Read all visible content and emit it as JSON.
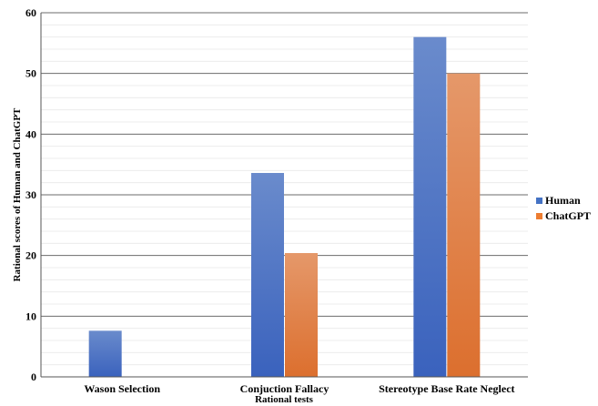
{
  "chart_data": {
    "type": "bar",
    "categories": [
      "Wason Selection",
      "Conjuction Fallacy",
      "Stereotype Base Rate Neglect"
    ],
    "series": [
      {
        "name": "Human",
        "values": [
          7.6,
          33.6,
          56
        ]
      },
      {
        "name": "ChatGPT",
        "values": [
          0,
          20.4,
          50
        ]
      }
    ],
    "xlabel": "Rational tests",
    "ylabel": "Rational scores of  Human and ChatGPT",
    "ylim": [
      0,
      60
    ],
    "yticks": [
      0,
      10,
      20,
      30,
      40,
      50,
      60
    ],
    "grid": "major and minor horizontal",
    "legend_position": "right",
    "colors": {
      "Human": "#4472c4",
      "ChatGPT": "#ed7d31"
    }
  }
}
